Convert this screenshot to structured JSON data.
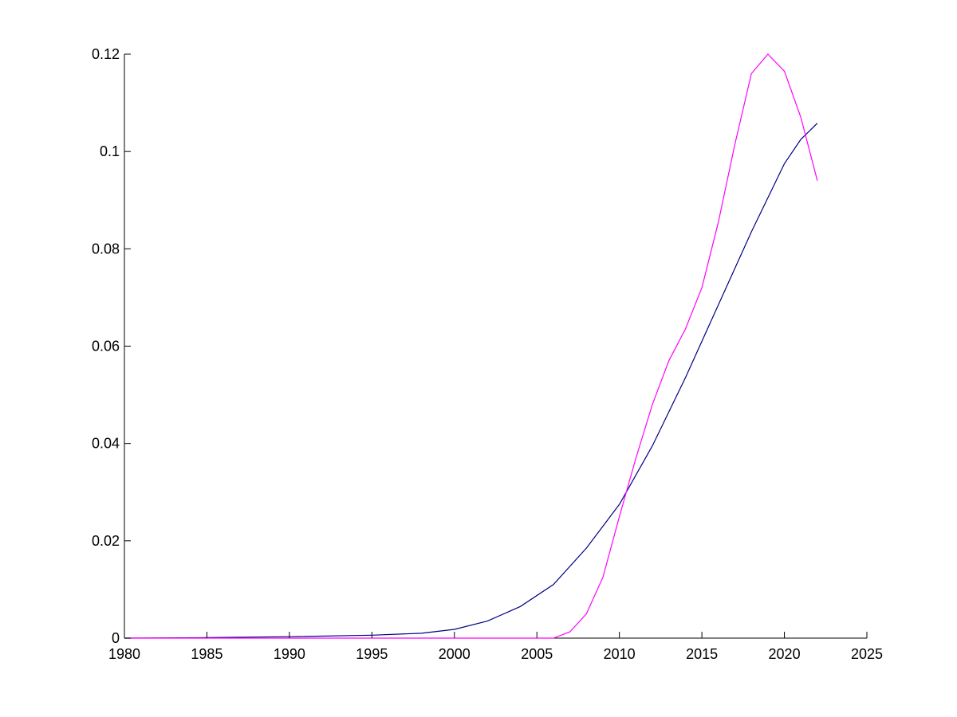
{
  "chart_data": {
    "type": "line",
    "title": "",
    "xlabel": "",
    "ylabel": "",
    "xlim": [
      1980,
      2025
    ],
    "ylim": [
      0,
      0.12
    ],
    "grid": false,
    "xticks": [
      1980,
      1985,
      1990,
      1995,
      2000,
      2005,
      2010,
      2015,
      2020,
      2025
    ],
    "xtick_labels": [
      "1980",
      "1985",
      "1990",
      "1995",
      "2000",
      "2005",
      "2010",
      "2015",
      "2020",
      "2025"
    ],
    "yticks": [
      0,
      0.02,
      0.04,
      0.06,
      0.08,
      0.1,
      0.12
    ],
    "ytick_labels": [
      "0",
      "0.02",
      "0.04",
      "0.06",
      "0.08",
      "0.1",
      "0.12"
    ],
    "series": [
      {
        "color": "#000080",
        "x": [
          1980,
          1985,
          1990,
          1995,
          1998,
          2000,
          2002,
          2004,
          2006,
          2008,
          2010,
          2012,
          2014,
          2016,
          2018,
          2020,
          2021,
          2022
        ],
        "values": [
          0,
          0.0001,
          0.0003,
          0.0006,
          0.001,
          0.0018,
          0.0035,
          0.0065,
          0.011,
          0.0185,
          0.0275,
          0.0395,
          0.0535,
          0.0685,
          0.0835,
          0.0975,
          0.1025,
          0.1058
        ]
      },
      {
        "color": "#ff00ff",
        "x": [
          1980,
          2006,
          2007,
          2008,
          2009,
          2010,
          2011,
          2012,
          2013,
          2014,
          2015,
          2016,
          2017,
          2018,
          2019,
          2020,
          2021,
          2022
        ],
        "values": [
          0,
          0,
          0.0013,
          0.005,
          0.0125,
          0.025,
          0.037,
          0.048,
          0.057,
          0.0635,
          0.072,
          0.0855,
          0.1015,
          0.116,
          0.12,
          0.1165,
          0.107,
          0.094
        ]
      }
    ]
  }
}
